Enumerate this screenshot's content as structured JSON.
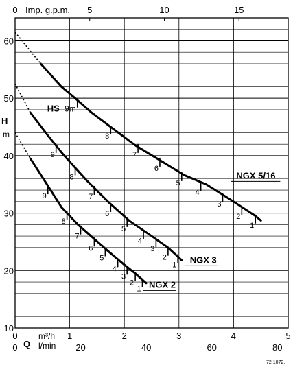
{
  "chart_data": {
    "type": "line",
    "title": "",
    "code": "72.1072.",
    "yaxis": {
      "symbol": "H",
      "unit": "m",
      "range": [
        10,
        64
      ],
      "ticks": [
        "10",
        "20",
        "30",
        "40",
        "50",
        "60"
      ]
    },
    "xaxes": {
      "top": {
        "label": "Imp. g.p.m.",
        "range": [
          0,
          18.3
        ],
        "ticks": [
          "0",
          "5",
          "10",
          "15"
        ]
      },
      "m3h": {
        "unit": "m³/h",
        "range": [
          0,
          5
        ],
        "ticks": [
          "0",
          "1",
          "2",
          "3",
          "4",
          "5"
        ]
      },
      "lmin": {
        "unit": "l/min",
        "range": [
          0,
          83.3
        ],
        "ticks": [
          "0",
          "20",
          "40",
          "60",
          "80"
        ]
      },
      "q_symbol": "Q"
    },
    "annotation": {
      "label": "HS",
      "value": "9m"
    },
    "grid": true,
    "series": [
      {
        "name": "NGX 5/16",
        "x": [
          0.47,
          0.85,
          1.1,
          1.4,
          1.75,
          2.2,
          2.6,
          3.1,
          3.5,
          4.0,
          4.4,
          4.5
        ],
        "y": [
          56,
          52,
          50,
          47.5,
          45,
          41.8,
          39.5,
          36.6,
          35,
          32,
          29.5,
          28.7
        ],
        "extrapolated": {
          "x": [
            0,
            0.47
          ],
          "y": [
            61.5,
            56
          ]
        },
        "speed_marks": [
          {
            "label": "9m",
            "x": 1.14,
            "y": 49.7
          },
          {
            "label": "8",
            "x": 1.75,
            "y": 45.0
          },
          {
            "label": "7",
            "x": 2.25,
            "y": 41.8
          },
          {
            "label": "6",
            "x": 2.65,
            "y": 39.4
          },
          {
            "label": "5",
            "x": 3.05,
            "y": 36.9
          },
          {
            "label": "4",
            "x": 3.4,
            "y": 35.2
          },
          {
            "label": "3",
            "x": 3.8,
            "y": 33.2
          },
          {
            "label": "2",
            "x": 4.15,
            "y": 31.0
          },
          {
            "label": "1",
            "x": 4.4,
            "y": 29.5
          }
        ]
      },
      {
        "name": "NGX 3",
        "x": [
          0.28,
          0.6,
          0.9,
          1.3,
          1.7,
          2.1,
          2.5,
          2.8,
          3.05
        ],
        "y": [
          47.5,
          43.5,
          40,
          35.8,
          32,
          28.6,
          26,
          24,
          21.8
        ],
        "extrapolated": {
          "x": [
            0,
            0.28
          ],
          "y": [
            52.5,
            47.5
          ]
        },
        "speed_marks": [
          {
            "label": "9",
            "x": 0.75,
            "y": 41.8
          },
          {
            "label": "8",
            "x": 1.1,
            "y": 37.9
          },
          {
            "label": "7",
            "x": 1.45,
            "y": 34.5
          },
          {
            "label": "6",
            "x": 1.75,
            "y": 31.5
          },
          {
            "label": "5",
            "x": 2.05,
            "y": 28.9
          },
          {
            "label": "4",
            "x": 2.35,
            "y": 26.8
          },
          {
            "label": "3",
            "x": 2.58,
            "y": 25.4
          },
          {
            "label": "2",
            "x": 2.8,
            "y": 23.9
          },
          {
            "label": "1",
            "x": 2.98,
            "y": 22.6
          }
        ]
      },
      {
        "name": "NGX 2",
        "x": [
          0.28,
          0.55,
          0.85,
          1.15,
          1.45,
          1.75,
          2.0,
          2.2,
          2.4
        ],
        "y": [
          39.5,
          35.5,
          31,
          28,
          25.5,
          23,
          21,
          19.5,
          17.8
        ],
        "extrapolated": {
          "x": [
            0,
            0.28
          ],
          "y": [
            44,
            39.5
          ]
        },
        "speed_marks": [
          {
            "label": "9",
            "x": 0.6,
            "y": 34.6
          },
          {
            "label": "8",
            "x": 0.95,
            "y": 30.2
          },
          {
            "label": "7",
            "x": 1.2,
            "y": 27.6
          },
          {
            "label": "6",
            "x": 1.45,
            "y": 25.5
          },
          {
            "label": "5",
            "x": 1.65,
            "y": 23.8
          },
          {
            "label": "4",
            "x": 1.88,
            "y": 21.9
          },
          {
            "label": "3",
            "x": 2.05,
            "y": 20.6
          },
          {
            "label": "2",
            "x": 2.2,
            "y": 19.5
          },
          {
            "label": "1",
            "x": 2.33,
            "y": 18.4
          }
        ]
      }
    ]
  }
}
